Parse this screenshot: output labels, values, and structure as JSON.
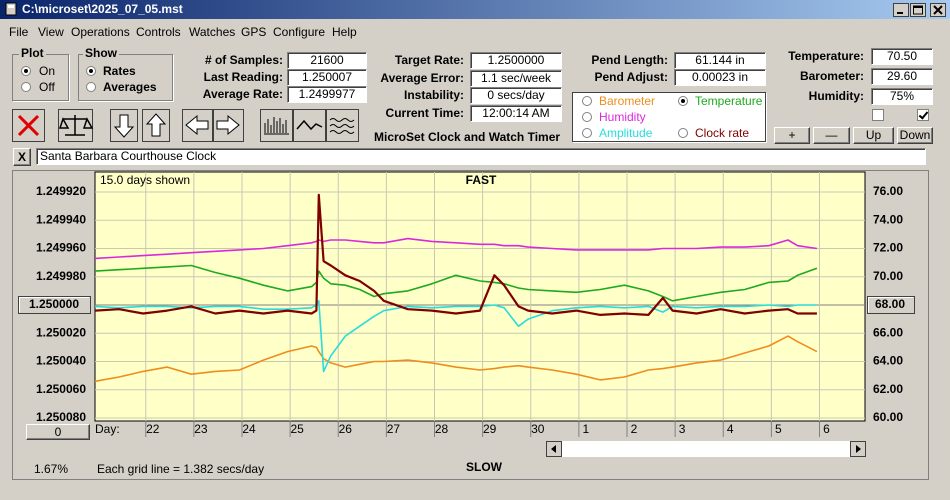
{
  "window": {
    "title": "C:\\microset\\2025_07_05.mst"
  },
  "menu": [
    "File",
    "View",
    "Operations",
    "Controls",
    "Watches",
    "GPS",
    "Configure",
    "Help"
  ],
  "plot_group": {
    "title": "Plot",
    "options": [
      "On",
      "Off"
    ],
    "selected": 0
  },
  "show_group": {
    "title": "Show",
    "options": [
      "Rates",
      "Averages"
    ],
    "selected": 0
  },
  "fields_1": [
    {
      "label": "# of Samples:",
      "value": "21600"
    },
    {
      "label": "Last Reading:",
      "value": "1.250007"
    },
    {
      "label": "Average Rate:",
      "value": "1.2499977"
    }
  ],
  "fields_2": [
    {
      "label": "Target Rate:",
      "value": "1.2500000"
    },
    {
      "label": "Average Error:",
      "value": "1.1 sec/week"
    },
    {
      "label": "Instability:",
      "value": "0 secs/day"
    },
    {
      "label": "Current Time:",
      "value": "12:00:14 AM"
    }
  ],
  "fields_3": [
    {
      "label": "Pend Length:",
      "value": "61.144 in"
    },
    {
      "label": "Pend Adjust:",
      "value": "0.00023 in"
    }
  ],
  "fields_4": [
    {
      "label": "Temperature:",
      "value": "70.50"
    },
    {
      "label": "Barometer:",
      "value": "29.60"
    },
    {
      "label": "Humidity:",
      "value": "75%"
    }
  ],
  "subtitle": "MicroSet Clock and Watch Timer",
  "checkboxes": [
    false,
    true
  ],
  "env_buttons": [
    "+",
    "—",
    "Up",
    "Down"
  ],
  "close_button": "X",
  "clock_name": "Santa Barbara Courthouse Clock",
  "chart_data": {
    "type": "line",
    "days_shown": "15.0 days shown",
    "top_label": "FAST",
    "bottom_label": "SLOW",
    "x_label": "Day:",
    "note": "Each grid line = 1.382 secs/day",
    "percent": "1.67%",
    "offset_button": "0",
    "grid": true,
    "xlim": [
      20.8,
      36.8
    ],
    "xticks": [
      22,
      23,
      24,
      25,
      26,
      27,
      28,
      29,
      30,
      {
        "value": 31,
        "label": "1"
      },
      {
        "value": 32,
        "label": "2"
      },
      {
        "value": 33,
        "label": "3"
      },
      {
        "value": 34,
        "label": "4"
      },
      {
        "value": 35,
        "label": "5"
      },
      {
        "value": 36,
        "label": "6"
      }
    ],
    "ylim": [
      1.25008,
      1.24992
    ],
    "yticks": [
      {
        "value": 1.24992,
        "label": "1.249920"
      },
      {
        "value": 1.24994,
        "label": "1.249940"
      },
      {
        "value": 1.24996,
        "label": "1.249960"
      },
      {
        "value": 1.24998,
        "label": "1.249980"
      },
      {
        "value": 1.25,
        "label": "1.250000"
      },
      {
        "value": 1.25002,
        "label": "1.250020"
      },
      {
        "value": 1.25004,
        "label": "1.250040"
      },
      {
        "value": 1.25006,
        "label": "1.250060"
      },
      {
        "value": 1.25008,
        "label": "1.250080"
      }
    ],
    "y2lim": [
      60,
      76
    ],
    "y2ticks": [
      {
        "value": 76,
        "label": "76.00"
      },
      {
        "value": 74,
        "label": "74.00"
      },
      {
        "value": 72,
        "label": "72.00"
      },
      {
        "value": 70,
        "label": "70.00"
      },
      {
        "value": 68,
        "label": "68.00"
      },
      {
        "value": 66,
        "label": "66.00"
      },
      {
        "value": 64,
        "label": "64.00"
      },
      {
        "value": 62,
        "label": "62.00"
      },
      {
        "value": 60,
        "label": "60.00"
      }
    ],
    "x": [
      20.8,
      21.3,
      21.8,
      22.3,
      22.8,
      23.3,
      23.8,
      24.3,
      24.8,
      25.3,
      25.4,
      25.45,
      25.55,
      25.7,
      26.0,
      26.3,
      26.6,
      26.8,
      27.3,
      27.8,
      28.3,
      28.8,
      29.1,
      29.3,
      29.6,
      29.8,
      30.3,
      30.8,
      31.3,
      31.8,
      32.3,
      32.6,
      32.8,
      33.3,
      33.8,
      34.3,
      34.8,
      35.2,
      35.4,
      35.8
    ],
    "series": [
      {
        "name": "Barometer",
        "color": "#f08c1e",
        "axis": "y2",
        "checked": false,
        "values": [
          62.6,
          62.9,
          63.3,
          63.6,
          63.1,
          63.3,
          63.4,
          64.1,
          64.7,
          65.1,
          65.0,
          64.7,
          64.2,
          63.9,
          63.6,
          63.8,
          64.0,
          64.0,
          64.1,
          63.9,
          63.6,
          63.4,
          63.5,
          63.6,
          63.7,
          63.6,
          63.4,
          63.1,
          62.7,
          62.9,
          63.4,
          63.5,
          63.6,
          63.9,
          64.1,
          64.6,
          65.1,
          65.8,
          65.4,
          64.7
        ]
      },
      {
        "name": "Temperature",
        "color": "#1eaa1e",
        "axis": "y2",
        "checked": true,
        "values": [
          70.4,
          70.5,
          70.6,
          70.7,
          70.8,
          70.3,
          69.9,
          69.4,
          69.0,
          69.3,
          69.6,
          70.4,
          69.9,
          69.5,
          69.4,
          69.1,
          68.6,
          68.8,
          69.0,
          69.5,
          70.1,
          69.7,
          69.6,
          69.5,
          69.2,
          69.1,
          69.0,
          68.9,
          69.1,
          69.4,
          69.0,
          68.6,
          68.3,
          68.6,
          68.9,
          69.1,
          69.6,
          69.7,
          70.1,
          70.6
        ]
      },
      {
        "name": "Humidity",
        "color": "#dc28dc",
        "axis": "y2",
        "checked": false,
        "values": [
          71.3,
          71.4,
          71.5,
          71.6,
          71.7,
          71.8,
          71.9,
          72.0,
          72.2,
          72.4,
          72.5,
          72.6,
          72.5,
          72.6,
          72.6,
          72.5,
          72.4,
          72.4,
          72.7,
          72.5,
          72.4,
          72.3,
          72.3,
          72.2,
          72.2,
          72.1,
          72.0,
          71.9,
          71.9,
          71.9,
          71.9,
          72.0,
          72.0,
          72.0,
          72.1,
          72.1,
          72.2,
          72.6,
          72.2,
          72.0
        ]
      },
      {
        "name": "Amplitude",
        "color": "#28dcdc",
        "axis": "y2",
        "checked": false,
        "values": [
          67.9,
          67.8,
          67.9,
          67.9,
          67.8,
          67.9,
          67.9,
          67.7,
          67.7,
          67.8,
          68.0,
          68.3,
          63.3,
          64.4,
          65.8,
          66.5,
          67.2,
          67.6,
          67.9,
          67.8,
          67.9,
          67.9,
          68.0,
          67.8,
          66.5,
          67.0,
          67.6,
          67.8,
          67.9,
          67.8,
          67.9,
          67.5,
          67.9,
          67.8,
          67.9,
          67.9,
          68.0,
          67.9,
          68.0,
          68.0
        ]
      },
      {
        "name": "Clock rate",
        "color": "#800000",
        "axis": "y",
        "checked": false,
        "values": [
          1.250004,
          1.250003,
          1.250006,
          1.250004,
          1.250001,
          1.250006,
          1.250004,
          1.250006,
          1.250004,
          1.250006,
          1.250004,
          1.249922,
          1.249969,
          1.249972,
          1.249979,
          1.249983,
          1.24999,
          1.249997,
          1.250003,
          1.250004,
          1.250006,
          1.250004,
          1.249979,
          1.249986,
          1.250001,
          1.250004,
          1.250006,
          1.250004,
          1.250007,
          1.250006,
          1.250007,
          1.249995,
          1.250004,
          1.250006,
          1.250003,
          1.250006,
          1.250004,
          1.250003,
          1.250006,
          1.250006
        ]
      }
    ]
  }
}
